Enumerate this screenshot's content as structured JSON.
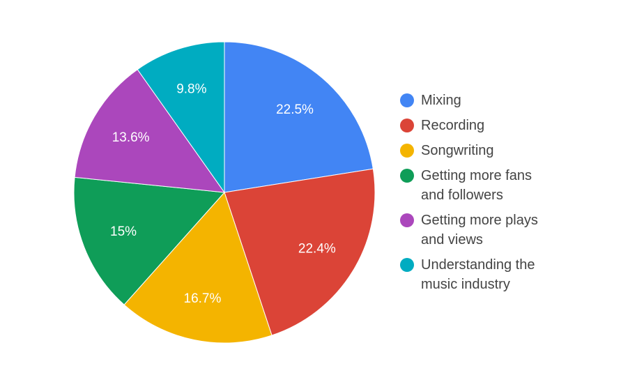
{
  "chart_data": {
    "type": "pie",
    "title": "",
    "legend_position": "right",
    "slices": [
      {
        "name": "Mixing",
        "value": 22.5,
        "label": "22.5%",
        "color": "#4285f4"
      },
      {
        "name": "Recording",
        "value": 22.4,
        "label": "22.4%",
        "color": "#db4437"
      },
      {
        "name": "Songwriting",
        "value": 16.7,
        "label": "16.7%",
        "color": "#f4b400"
      },
      {
        "name": "Getting more fans and followers",
        "value": 15,
        "label": "15%",
        "color": "#0f9d58"
      },
      {
        "name": "Getting more plays and views",
        "value": 13.6,
        "label": "13.6%",
        "color": "#ab47bc"
      },
      {
        "name": "Understanding the music industry",
        "value": 9.8,
        "label": "9.8%",
        "color": "#00acc1"
      }
    ]
  },
  "legend": {
    "items": [
      {
        "label_line1": "Mixing",
        "label_line2": ""
      },
      {
        "label_line1": "Recording",
        "label_line2": ""
      },
      {
        "label_line1": "Songwriting",
        "label_line2": ""
      },
      {
        "label_line1": "Getting more fans",
        "label_line2": "and followers"
      },
      {
        "label_line1": "Getting more plays",
        "label_line2": "and views"
      },
      {
        "label_line1": "Understanding the",
        "label_line2": "music industry"
      }
    ]
  }
}
